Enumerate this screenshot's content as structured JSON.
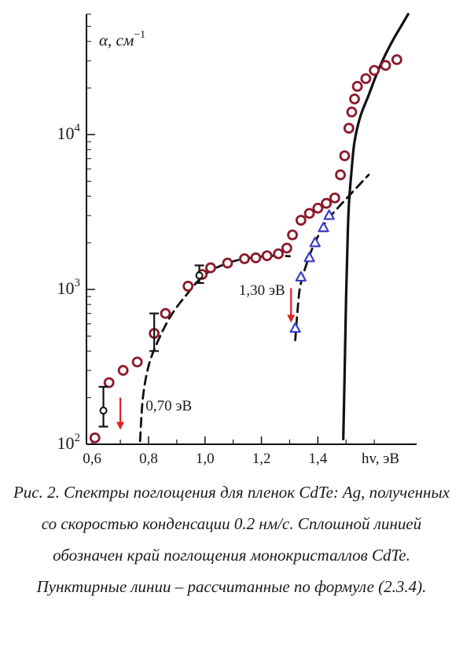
{
  "chart_data": {
    "type": "scatter",
    "y_scale": "log",
    "xlim": [
      0.58,
      1.75
    ],
    "ylim": [
      100,
      60000
    ],
    "x_ticks": [
      {
        "value": 0.6,
        "label": "0,6"
      },
      {
        "value": 0.8,
        "label": "0,8"
      },
      {
        "value": 1.0,
        "label": "1,0"
      },
      {
        "value": 1.2,
        "label": "1,2"
      },
      {
        "value": 1.4,
        "label": "1,4"
      }
    ],
    "x_minor_ticks": [
      0.7,
      0.9,
      1.1,
      1.3,
      1.5,
      1.6
    ],
    "y_ticks": [
      {
        "value": 100,
        "base": "10",
        "exp": "2"
      },
      {
        "value": 1000,
        "base": "10",
        "exp": "3"
      },
      {
        "value": 10000,
        "base": "10",
        "exp": "4"
      }
    ],
    "xlabel": "hv, эВ",
    "ylabel_base": "α, см",
    "ylabel_exp": "−1",
    "colors": {
      "circles": "#8b1a2b",
      "triangles": "#3a3fc4",
      "arrows": "#e02020",
      "lines": "#111111"
    },
    "series": [
      {
        "marker": "circle",
        "x": [
          0.61,
          0.66,
          0.71,
          0.76,
          0.82,
          0.86,
          0.94,
          0.99,
          1.02,
          1.08,
          1.14,
          1.18,
          1.22,
          1.26,
          1.29,
          1.31,
          1.34,
          1.37,
          1.4,
          1.43,
          1.46,
          1.48,
          1.495,
          1.51,
          1.52,
          1.53,
          1.54,
          1.57,
          1.6,
          1.64,
          1.68
        ],
        "y": [
          110,
          250,
          300,
          340,
          520,
          700,
          1050,
          1250,
          1380,
          1480,
          1580,
          1600,
          1650,
          1700,
          1850,
          2250,
          2800,
          3100,
          3350,
          3600,
          3900,
          5500,
          7300,
          11000,
          14000,
          17000,
          20500,
          23000,
          26000,
          28000,
          30500
        ]
      },
      {
        "marker": "triangle",
        "x": [
          1.32,
          1.34,
          1.37,
          1.39,
          1.42,
          1.44
        ],
        "y": [
          560,
          1200,
          1600,
          2000,
          2500,
          3000
        ]
      },
      {
        "marker": "open-circle-errorbar",
        "x": [
          0.64,
          0.98
        ],
        "y": [
          165,
          1230
        ],
        "y_low": [
          130,
          1100
        ],
        "y_high": [
          235,
          1430
        ]
      },
      {
        "marker": "errorbar",
        "x": [
          0.82
        ],
        "y": [
          520
        ],
        "y_low": [
          400
        ],
        "y_high": [
          700
        ]
      },
      {
        "line": "solid",
        "x": [
          1.49,
          1.495,
          1.5,
          1.505,
          1.51,
          1.52,
          1.53,
          1.55,
          1.58,
          1.61,
          1.64,
          1.67,
          1.7,
          1.72
        ],
        "y": [
          108,
          300,
          900,
          2000,
          3500,
          6000,
          9000,
          13000,
          18000,
          25000,
          33000,
          42000,
          52000,
          60000
        ]
      },
      {
        "line": "dashed",
        "x": [
          0.77,
          0.78,
          0.8,
          0.83,
          0.88,
          0.94,
          1.0,
          1.08,
          1.16,
          1.24,
          1.3
        ],
        "y": [
          105,
          200,
          320,
          450,
          680,
          950,
          1250,
          1480,
          1600,
          1650,
          1640
        ]
      },
      {
        "line": "dashed",
        "x": [
          1.32,
          1.33,
          1.34,
          1.37,
          1.4,
          1.43,
          1.47,
          1.52,
          1.58
        ],
        "y": [
          470,
          800,
          1100,
          1650,
          2200,
          2750,
          3350,
          4200,
          5500
        ]
      }
    ],
    "annotations": [
      {
        "text": "0,70 эВ",
        "x": 0.79,
        "y": 165
      },
      {
        "text": "1,30 эВ",
        "x": 1.12,
        "y": 920
      }
    ],
    "arrows": [
      {
        "x": 0.7,
        "y_from": 200,
        "y_to": 124
      },
      {
        "x": 1.305,
        "y_from": 1020,
        "y_to": 610
      }
    ]
  },
  "caption": "Рис. 2. Спектры поглощения для пленок CdTe: Ag, полученных со скоростью конденсации 0.2 нм/с. Сплошной линией обозначен край поглощения монокристаллов CdTe. Пунктирные линии – рассчитанные по формуле (2.3.4)."
}
